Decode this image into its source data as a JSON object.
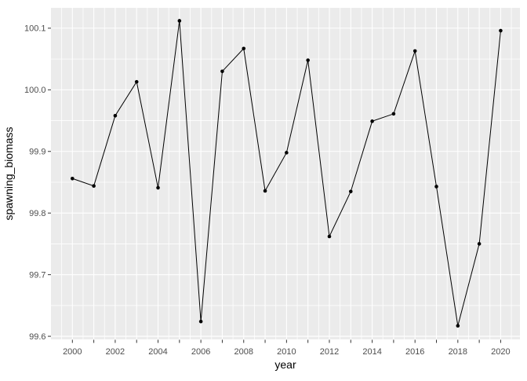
{
  "chart_data": {
    "type": "line",
    "title": "",
    "xlabel": "year",
    "ylabel": "spawning_biomass",
    "x": [
      2000,
      2001,
      2002,
      2003,
      2004,
      2005,
      2006,
      2007,
      2008,
      2009,
      2010,
      2011,
      2012,
      2013,
      2014,
      2015,
      2016,
      2017,
      2018,
      2019,
      2020
    ],
    "y": [
      99.856,
      99.844,
      99.958,
      100.013,
      99.841,
      100.112,
      99.624,
      100.03,
      100.067,
      99.836,
      99.898,
      100.048,
      99.762,
      99.835,
      99.949,
      99.961,
      100.063,
      99.843,
      99.617,
      99.75,
      100.096
    ],
    "xlim": [
      1999.0,
      2020.9
    ],
    "ylim": [
      99.595,
      100.133
    ],
    "x_ticks_all": [
      2000,
      2001,
      2002,
      2003,
      2004,
      2005,
      2006,
      2007,
      2008,
      2009,
      2010,
      2011,
      2012,
      2013,
      2014,
      2015,
      2016,
      2017,
      2018,
      2019,
      2020
    ],
    "x_label_positions": [
      2000,
      2002,
      2004,
      2006,
      2008,
      2010,
      2012,
      2014,
      2016,
      2018,
      2020
    ],
    "x_tick_labels": [
      "2000",
      "2002",
      "2004",
      "2006",
      "2008",
      "2010",
      "2012",
      "2014",
      "2016",
      "2018",
      "2020"
    ],
    "y_ticks": [
      99.6,
      99.7,
      99.8,
      99.9,
      100.0,
      100.1
    ],
    "y_tick_labels": [
      "99.6",
      "99.7",
      "99.8",
      "99.9",
      "100.0",
      "100.1"
    ],
    "grid": true,
    "legend_position": "none",
    "style": {
      "panel_bg": "#EBEBEB",
      "grid_color": "#FFFFFF",
      "line_color": "#000000",
      "point_color": "#000000",
      "tick_label_color": "#4D4D4D",
      "tick_mark_color": "#333333",
      "axis_title_color": "#000000",
      "outer_bg": "#FFFFFF"
    }
  }
}
